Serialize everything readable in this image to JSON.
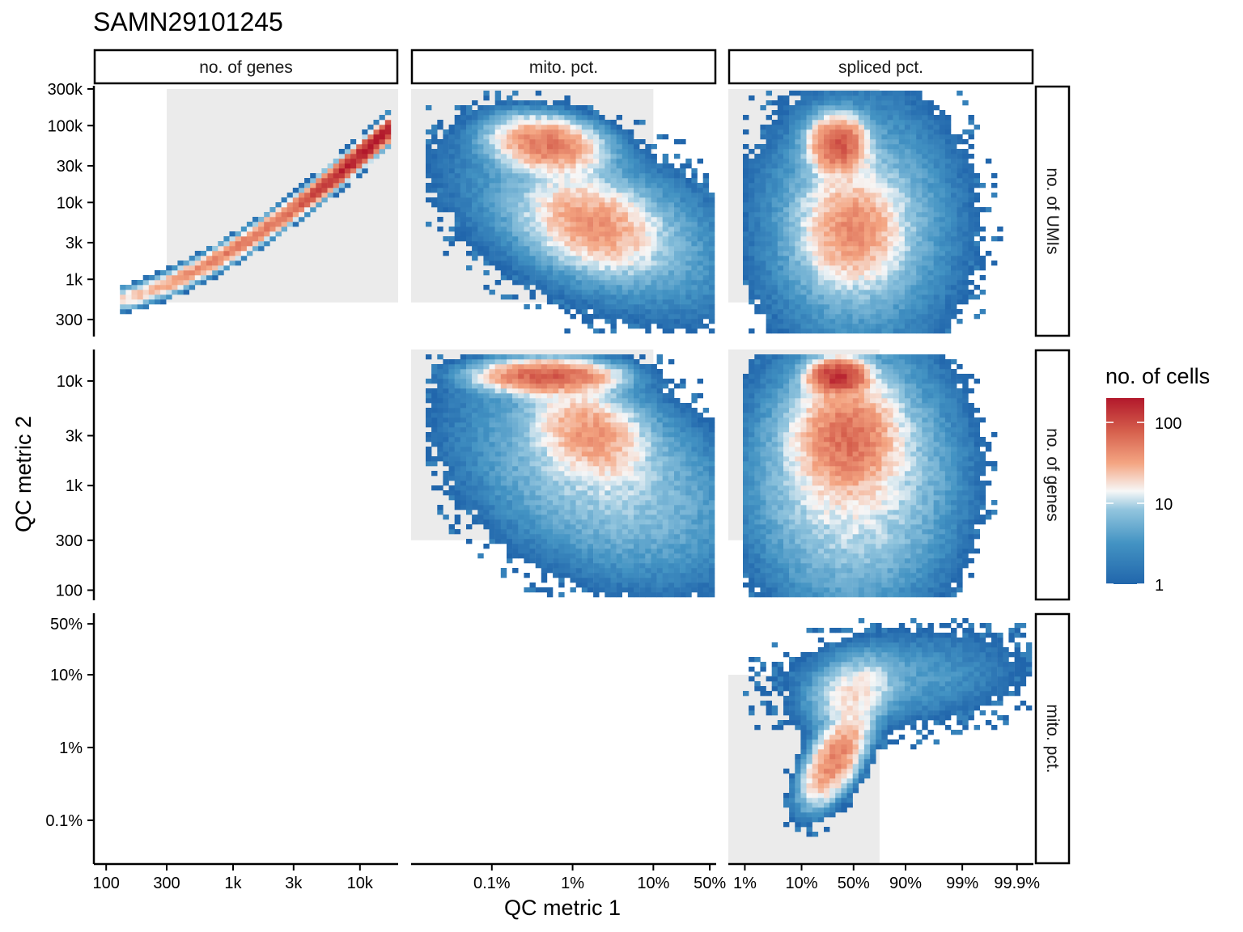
{
  "chart_data": {
    "type": "heatmap",
    "title": "SAMN29101245",
    "xlabel": "QC metric 1",
    "ylabel": "QC metric 2",
    "columns": [
      "no. of genes",
      "mito. pct.",
      "spliced pct."
    ],
    "rows": [
      "no. of UMIs",
      "no. of genes",
      "mito. pct."
    ],
    "x_axes": [
      {
        "ticks": [
          "100",
          "300",
          "1k",
          "3k",
          "10k"
        ],
        "scale": "log"
      },
      {
        "ticks": [
          "0.1%",
          "1%",
          "10%",
          "50%"
        ],
        "scale": "log"
      },
      {
        "ticks": [
          "1%",
          "10%",
          "50%",
          "90%",
          "99%",
          "99.9%"
        ],
        "scale": "logit"
      }
    ],
    "y_axes": [
      {
        "ticks": [
          "300k",
          "100k",
          "30k",
          "10k",
          "3k",
          "1k",
          "300"
        ],
        "scale": "log"
      },
      {
        "ticks": [
          "10k",
          "3k",
          "1k",
          "300",
          "100"
        ],
        "scale": "log"
      },
      {
        "ticks": [
          "50%",
          "10%",
          "1%",
          "0.1%"
        ],
        "scale": "log"
      }
    ],
    "legend": {
      "title": "no. of cells",
      "ticks": [
        "100",
        "10",
        "1"
      ],
      "placement": "right",
      "scale": "log",
      "range": [
        1,
        200
      ]
    },
    "colors": {
      "low": "#2166ac",
      "mid": "#f7f7f7",
      "high": "#b2182b",
      "filter_region": "#ebebeb"
    },
    "panels": [
      {
        "row": "no. of UMIs",
        "col": "no. of genes",
        "filter_x": [
          300,
          20000
        ],
        "filter_y": [
          500,
          300000
        ],
        "pattern": "diagonal correlation, peak near 10k genes / 60k UMIs",
        "peak_count": 180
      },
      {
        "row": "no. of UMIs",
        "col": "mito. pct.",
        "filter_x": [
          0.01,
          10
        ],
        "filter_y": [
          500,
          300000
        ],
        "pattern": "two clusters: 1% mito at 50k UMIs and 3% mito at 5k UMIs",
        "peak_count": 60
      },
      {
        "row": "no. of UMIs",
        "col": "spliced pct.",
        "filter_x": [
          0.5,
          75
        ],
        "filter_y": [
          500,
          300000
        ],
        "pattern": "main cluster at 15% spliced / 60k UMIs, secondary at 25% spliced / 4k UMIs",
        "peak_count": 90
      },
      {
        "row": "no. of genes",
        "col": "mito. pct.",
        "filter_x": [
          0.01,
          10
        ],
        "filter_y": [
          300,
          20000
        ],
        "pattern": "dense band at 1% mito / 10k genes, tail towards high mito",
        "peak_count": 80
      },
      {
        "row": "no. of genes",
        "col": "spliced pct.",
        "filter_x": [
          0.5,
          75
        ],
        "filter_y": [
          300,
          20000
        ],
        "pattern": "peak at 15% spliced / 10k genes",
        "peak_count": 150
      },
      {
        "row": "mito. pct.",
        "col": "spliced pct.",
        "filter_x": [
          0.5,
          75
        ],
        "filter_y": [
          0.01,
          10
        ],
        "pattern": "peak at 15% spliced / 0.7% mito, sparse tail to 99% spliced",
        "peak_count": 50
      }
    ]
  }
}
